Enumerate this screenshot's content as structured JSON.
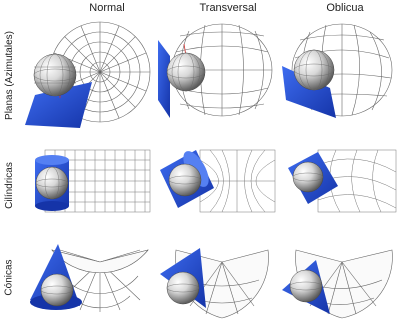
{
  "columns": [
    "Normal",
    "Transversal",
    "Oblicua"
  ],
  "rows": [
    "Planas (Azimutales)",
    "Cilíndricas",
    "Cónicas"
  ],
  "colors": {
    "plane": "#1f4fd8",
    "grid": "#555555",
    "globe_light": "#f2f2f2",
    "globe_dark": "#6e6e6e",
    "text": "#222222"
  },
  "icons": [
    "globe",
    "projection-plane",
    "projection-cylinder",
    "projection-cone",
    "graticule-grid"
  ]
}
